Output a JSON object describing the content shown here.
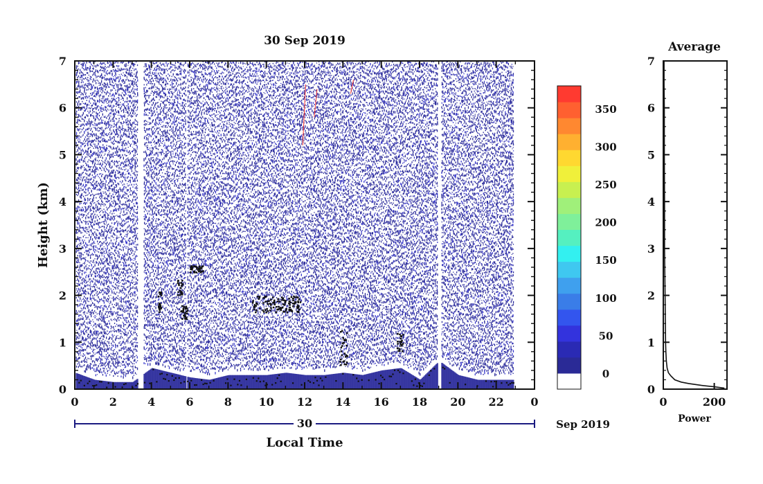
{
  "chart_data": [
    {
      "type": "heatmap",
      "title": "30 Sep 2019",
      "xlabel": "Local Time",
      "ylabel": "Height (km)",
      "date_day_label": "30",
      "date_month_label": "Sep 2019",
      "x_tick_labels": [
        "0",
        "2",
        "4",
        "6",
        "8",
        "10",
        "12",
        "14",
        "16",
        "18",
        "20",
        "22",
        "0"
      ],
      "y_tick_labels": [
        "0",
        "1",
        "2",
        "3",
        "4",
        "5",
        "6",
        "7"
      ],
      "xlim": [
        0,
        24
      ],
      "ylim": [
        0,
        7
      ],
      "gaps_hours": [
        [
          3.25,
          3.55
        ],
        [
          5.75,
          5.85
        ],
        [
          18.9,
          19.1
        ],
        [
          21.05,
          21.1
        ]
      ],
      "data_end_hour": 22.9,
      "colorbar": {
        "tick_labels": [
          "0",
          "50",
          "100",
          "150",
          "200",
          "250",
          "300",
          "350"
        ],
        "range": [
          0,
          380
        ],
        "colors": [
          "#ffffff",
          "#2a2a96",
          "#2a2ab4",
          "#3333dd",
          "#3355ee",
          "#3a7de8",
          "#3fa0ee",
          "#3fc8f0",
          "#33f0f0",
          "#55f0c0",
          "#7ff09a",
          "#a0f07a",
          "#c8f050",
          "#f0f03a",
          "#ffd830",
          "#ffb030",
          "#ff8830",
          "#ff6030",
          "#ff3a30"
        ]
      },
      "layer_tops_km": {
        "times": [
          0,
          1,
          2,
          3,
          4,
          5,
          6,
          7,
          8,
          9,
          10,
          11,
          12,
          13,
          14,
          15,
          16,
          17,
          18,
          19,
          20,
          21,
          22,
          22.9
        ],
        "heights": [
          0.35,
          0.2,
          0.15,
          0.15,
          0.45,
          0.35,
          0.25,
          0.2,
          0.3,
          0.3,
          0.3,
          0.35,
          0.3,
          0.3,
          0.35,
          0.3,
          0.4,
          0.45,
          0.2,
          0.6,
          0.3,
          0.2,
          0.2,
          0.2
        ]
      },
      "cloud_echoes": [
        {
          "t0": 4.3,
          "t1": 4.5,
          "h0": 1.6,
          "h1": 2.1
        },
        {
          "t0": 5.3,
          "t1": 5.6,
          "h0": 2.0,
          "h1": 2.35
        },
        {
          "t0": 5.5,
          "t1": 5.9,
          "h0": 1.5,
          "h1": 1.8
        },
        {
          "t0": 6.0,
          "t1": 6.7,
          "h0": 2.5,
          "h1": 2.65
        },
        {
          "t0": 9.2,
          "t1": 11.8,
          "h0": 1.65,
          "h1": 2.0
        },
        {
          "t0": 13.8,
          "t1": 14.2,
          "h0": 0.5,
          "h1": 1.3
        },
        {
          "t0": 16.8,
          "t1": 17.1,
          "h0": 0.8,
          "h1": 1.2
        }
      ]
    },
    {
      "type": "line",
      "title": "Average",
      "xlabel": "Power",
      "x_tick_labels": [
        "0",
        "200"
      ],
      "y_tick_labels": [
        "0",
        "1",
        "2",
        "3",
        "4",
        "5",
        "6",
        "7"
      ],
      "xlim": [
        0,
        250
      ],
      "ylim": [
        0,
        7
      ],
      "x": [
        240,
        200,
        150,
        100,
        70,
        45,
        30,
        20,
        15,
        12,
        10,
        9,
        8,
        7,
        6,
        5,
        5,
        4,
        4,
        3,
        3
      ],
      "y": [
        0.02,
        0.05,
        0.08,
        0.12,
        0.15,
        0.2,
        0.28,
        0.35,
        0.45,
        0.6,
        0.8,
        1.0,
        1.5,
        2.0,
        2.5,
        3.0,
        4.0,
        5.0,
        6.0,
        6.5,
        7.0
      ]
    }
  ],
  "colors": {
    "axis": "#111111",
    "axis_accent": "#1a1a80",
    "clear_air": "#2d2d9c",
    "layer_light": "#3a3acc",
    "echo": "#111111",
    "hot": "#ff3a30"
  }
}
